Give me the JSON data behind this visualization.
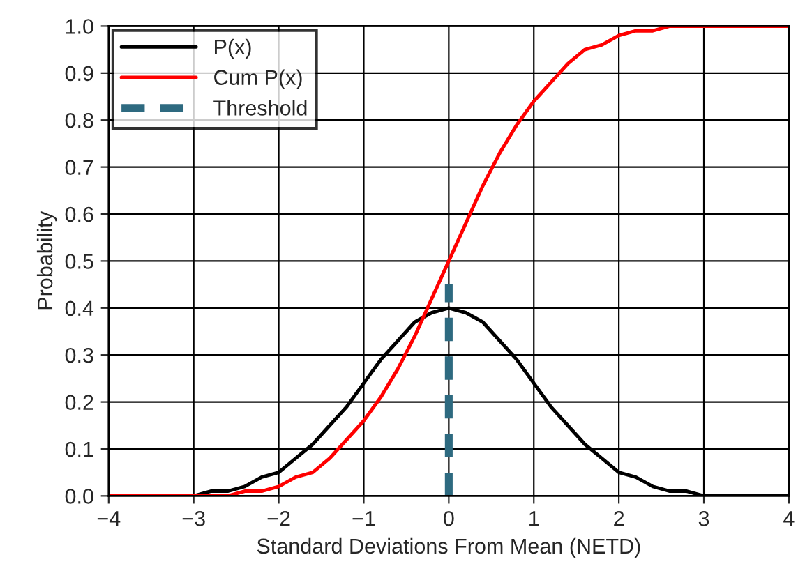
{
  "chart_data": {
    "type": "line",
    "xlabel": "Standard Deviations From Mean (NETD)",
    "ylabel": "Probability",
    "x": [
      -4.0,
      -3.8,
      -3.6,
      -3.4,
      -3.2,
      -3.0,
      -2.8,
      -2.6,
      -2.4,
      -2.2,
      -2.0,
      -1.8,
      -1.6,
      -1.4,
      -1.2,
      -1.0,
      -0.8,
      -0.6,
      -0.4,
      -0.2,
      0.0,
      0.2,
      0.4,
      0.6,
      0.8,
      1.0,
      1.2,
      1.4,
      1.6,
      1.8,
      2.0,
      2.2,
      2.4,
      2.6,
      2.8,
      3.0,
      3.2,
      3.4,
      3.6,
      3.8,
      4.0
    ],
    "series": [
      {
        "name": "P(x)",
        "color": "#000000",
        "values": [
          0.0,
          0.0,
          0.0,
          0.0,
          0.0,
          0.0,
          0.01,
          0.01,
          0.02,
          0.04,
          0.05,
          0.08,
          0.11,
          0.15,
          0.19,
          0.24,
          0.29,
          0.33,
          0.37,
          0.39,
          0.4,
          0.39,
          0.37,
          0.33,
          0.29,
          0.24,
          0.19,
          0.15,
          0.11,
          0.08,
          0.05,
          0.04,
          0.02,
          0.01,
          0.01,
          0.0,
          0.0,
          0.0,
          0.0,
          0.0,
          0.0
        ]
      },
      {
        "name": "Cum P(x)",
        "color": "#ff0000",
        "values": [
          0.0,
          0.0,
          0.0,
          0.0,
          0.0,
          0.0,
          0.0,
          0.0,
          0.01,
          0.01,
          0.02,
          0.04,
          0.05,
          0.08,
          0.12,
          0.16,
          0.21,
          0.27,
          0.34,
          0.42,
          0.5,
          0.58,
          0.66,
          0.73,
          0.79,
          0.84,
          0.88,
          0.92,
          0.95,
          0.96,
          0.98,
          0.99,
          0.99,
          1.0,
          1.0,
          1.0,
          1.0,
          1.0,
          1.0,
          1.0,
          1.0
        ]
      },
      {
        "name": "Threshold",
        "color": "#2e6a80",
        "line_style": "dashed",
        "x": [
          0.0,
          0.0
        ],
        "values": [
          0.0,
          0.45
        ]
      }
    ],
    "xlim": [
      -4,
      4
    ],
    "xticks": [
      {
        "value": -4,
        "label": "−4"
      },
      {
        "value": -3,
        "label": "−3"
      },
      {
        "value": -2,
        "label": "−2"
      },
      {
        "value": -1,
        "label": "−1"
      },
      0,
      1,
      2,
      3,
      4
    ],
    "ylim": [
      0,
      1
    ],
    "yticks": [
      {
        "value": 0,
        "label": "0.0"
      },
      0.1,
      0.2,
      0.3,
      0.4,
      0.5,
      0.6,
      0.7,
      0.8,
      0.9,
      {
        "value": 1,
        "label": "1.0"
      }
    ],
    "grid": true,
    "legend": "top left"
  }
}
